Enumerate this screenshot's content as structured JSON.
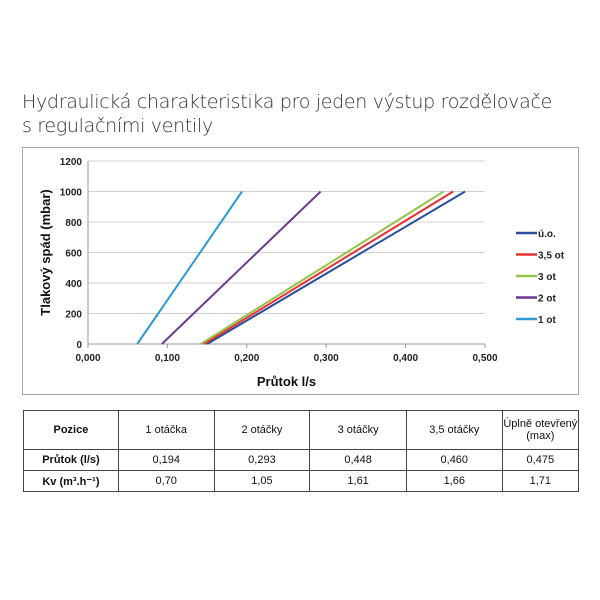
{
  "title_line1": "Hydraulická charakteristika pro jeden výstup rozdělovače",
  "title_line2": "s regulačními ventily",
  "chart_data": {
    "type": "line",
    "xlabel": "Průtok l/s",
    "ylabel": "Tlakový spád (mbar)",
    "xlim": [
      0,
      0.5
    ],
    "ylim": [
      0,
      1200
    ],
    "xticks": [
      "0,000",
      "0,100",
      "0,200",
      "0,300",
      "0,400",
      "0,500"
    ],
    "xtick_values": [
      0,
      0.1,
      0.2,
      0.3,
      0.4,
      0.5
    ],
    "yticks": [
      "0",
      "200",
      "400",
      "600",
      "800",
      "1000",
      "1200"
    ],
    "ytick_values": [
      0,
      200,
      400,
      600,
      800,
      1000,
      1200
    ],
    "grid": "horizontal",
    "legend_placement": "right",
    "series": [
      {
        "name": "ú.o.",
        "color": "#2a4d9c",
        "x": [
          0.15,
          0.475
        ],
        "y": [
          0,
          1000
        ]
      },
      {
        "name": "3,5 ot",
        "color": "#e8312f",
        "x": [
          0.146,
          0.46
        ],
        "y": [
          0,
          1000
        ]
      },
      {
        "name": "3 ot",
        "color": "#93c34a",
        "x": [
          0.142,
          0.448
        ],
        "y": [
          0,
          1000
        ]
      },
      {
        "name": "2 ot",
        "color": "#6b3a8e",
        "x": [
          0.093,
          0.293
        ],
        "y": [
          0,
          1000
        ]
      },
      {
        "name": "1 ot",
        "color": "#2e9ad3",
        "x": [
          0.062,
          0.194
        ],
        "y": [
          0,
          1000
        ]
      }
    ]
  },
  "table": {
    "header": [
      "Pozice",
      "1 otáčka",
      "2 otáčky",
      "3 otáčky",
      "3,5 otáčky",
      "Úplně otevřený (max)"
    ],
    "rows": [
      [
        "Průtok (l/s)",
        "0,194",
        "0,293",
        "0,448",
        "0,460",
        "0,475"
      ],
      [
        "Kv (m³.h⁻¹)",
        "0,70",
        "1,05",
        "1,61",
        "1,66",
        "1,71"
      ]
    ]
  }
}
